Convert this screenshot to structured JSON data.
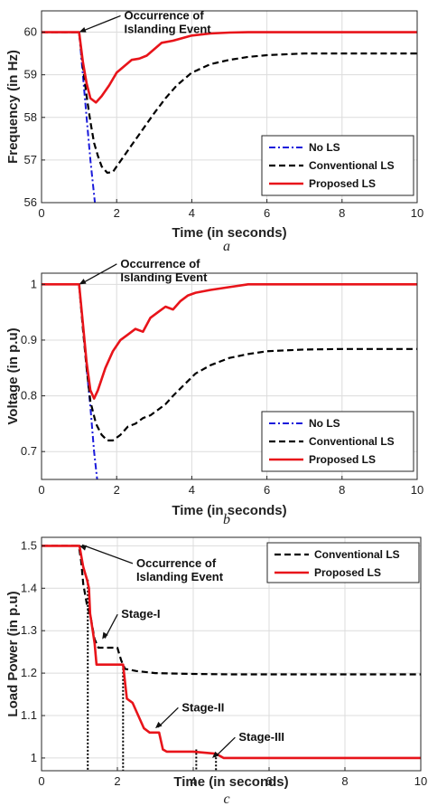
{
  "chart_data": [
    {
      "type": "line",
      "panel": "a",
      "caption": "a",
      "xlabel": "Time (in seconds)",
      "ylabel": "Frequency (in Hz)",
      "xlim": [
        0,
        10
      ],
      "ylim": [
        56,
        60.5
      ],
      "xticks": [
        0,
        2,
        4,
        6,
        8,
        10
      ],
      "yticks": [
        56,
        57,
        58,
        59,
        60
      ],
      "grid": true,
      "legend": "bottom-right",
      "annotations": [
        {
          "text": [
            "Occurrence of",
            "Islanding Event"
          ],
          "target": [
            1.0,
            60.0
          ],
          "text_at": [
            2.2,
            60.3
          ]
        }
      ],
      "series": [
        {
          "name": "No LS",
          "style": "dashdot",
          "color": "#1a1adb",
          "x": [
            0,
            1.0,
            1.1,
            1.2,
            1.3,
            1.42
          ],
          "y": [
            60,
            60,
            59.0,
            58.0,
            57.0,
            56.0
          ]
        },
        {
          "name": "Conventional LS",
          "style": "dashed",
          "color": "#000000",
          "x": [
            0,
            1.0,
            1.1,
            1.2,
            1.3,
            1.4,
            1.5,
            1.6,
            1.75,
            1.9,
            2.0,
            2.2,
            2.4,
            2.6,
            2.8,
            3.0,
            3.3,
            3.6,
            4.0,
            4.5,
            5.0,
            5.5,
            6.0,
            7.0,
            8.0,
            9.0,
            10.0
          ],
          "y": [
            60,
            60,
            59.2,
            58.5,
            57.9,
            57.4,
            57.1,
            56.85,
            56.7,
            56.72,
            56.85,
            57.1,
            57.35,
            57.6,
            57.85,
            58.1,
            58.45,
            58.75,
            59.05,
            59.25,
            59.35,
            59.42,
            59.46,
            59.5,
            59.5,
            59.5,
            59.5
          ]
        },
        {
          "name": "Proposed LS",
          "style": "solid",
          "color": "#e8141a",
          "x": [
            0,
            1.0,
            1.1,
            1.2,
            1.3,
            1.45,
            1.6,
            1.8,
            2.0,
            2.2,
            2.4,
            2.6,
            2.8,
            3.0,
            3.2,
            3.5,
            4.0,
            4.5,
            5.0,
            5.5,
            6.0,
            10.0
          ],
          "y": [
            60,
            60,
            59.3,
            58.8,
            58.45,
            58.35,
            58.5,
            58.75,
            59.05,
            59.2,
            59.35,
            59.38,
            59.45,
            59.6,
            59.75,
            59.8,
            59.92,
            59.97,
            59.99,
            60,
            60,
            60
          ]
        }
      ]
    },
    {
      "type": "line",
      "panel": "b",
      "caption": "b",
      "xlabel": "Time (in seconds)",
      "ylabel": "Voltage (in p.u)",
      "xlim": [
        0,
        10
      ],
      "ylim": [
        0.65,
        1.02
      ],
      "xticks": [
        0,
        2,
        4,
        6,
        8,
        10
      ],
      "yticks": [
        0.7,
        0.8,
        0.9,
        1
      ],
      "grid": true,
      "legend": "bottom-right",
      "annotations": [
        {
          "text": [
            "Occurrence of",
            "Islanding Event"
          ],
          "target": [
            1.0,
            1.0
          ],
          "text_at": [
            2.1,
            1.03
          ]
        }
      ],
      "series": [
        {
          "name": "No LS",
          "style": "dashdot",
          "color": "#1a1adb",
          "x": [
            0,
            1.0,
            1.1,
            1.2,
            1.3,
            1.4,
            1.48
          ],
          "y": [
            1,
            1,
            0.93,
            0.85,
            0.78,
            0.7,
            0.65
          ]
        },
        {
          "name": "Conventional LS",
          "style": "dashed",
          "color": "#000000",
          "x": [
            0,
            1.0,
            1.1,
            1.2,
            1.3,
            1.45,
            1.6,
            1.75,
            1.9,
            2.1,
            2.3,
            2.5,
            2.7,
            2.9,
            3.1,
            3.3,
            3.5,
            3.8,
            4.1,
            4.5,
            5.0,
            5.5,
            6.0,
            7.0,
            8.0,
            9.0,
            10.0
          ],
          "y": [
            1,
            1,
            0.92,
            0.85,
            0.79,
            0.75,
            0.73,
            0.72,
            0.72,
            0.73,
            0.745,
            0.75,
            0.76,
            0.765,
            0.775,
            0.785,
            0.8,
            0.82,
            0.84,
            0.855,
            0.868,
            0.875,
            0.88,
            0.883,
            0.884,
            0.884,
            0.884
          ]
        },
        {
          "name": "Proposed LS",
          "style": "solid",
          "color": "#e8141a",
          "x": [
            0,
            1.0,
            1.1,
            1.2,
            1.3,
            1.4,
            1.5,
            1.7,
            1.9,
            2.1,
            2.3,
            2.5,
            2.7,
            2.9,
            3.1,
            3.3,
            3.5,
            3.7,
            3.9,
            4.1,
            4.5,
            5.0,
            5.5,
            6.0,
            10.0
          ],
          "y": [
            1,
            1,
            0.93,
            0.86,
            0.81,
            0.795,
            0.81,
            0.85,
            0.88,
            0.9,
            0.91,
            0.92,
            0.915,
            0.94,
            0.95,
            0.96,
            0.955,
            0.97,
            0.98,
            0.985,
            0.99,
            0.995,
            1.0,
            1.0,
            1.0
          ]
        }
      ]
    },
    {
      "type": "line",
      "panel": "c",
      "caption": "c",
      "xlabel": "Time (in seconds)",
      "ylabel": "Load Power (in p.u)",
      "xlim": [
        0,
        10
      ],
      "ylim": [
        0.97,
        1.52
      ],
      "xticks": [
        0,
        2,
        4,
        6,
        8,
        10
      ],
      "xticklabels": [
        "0",
        "2",
        "4",
        "6",
        "8",
        "10"
      ],
      "yticks": [
        1,
        1.1,
        1.2,
        1.3,
        1.4,
        1.5
      ],
      "grid": true,
      "legend": "top-right",
      "annotations": [
        {
          "text": [
            "Occurrence of",
            "Islanding Event"
          ],
          "target": [
            1.0,
            1.5
          ],
          "text_at": [
            2.5,
            1.45
          ]
        },
        {
          "text": [
            "Stage-I"
          ],
          "target": [
            1.6,
            1.28
          ],
          "text_at": [
            2.1,
            1.33
          ]
        },
        {
          "text": [
            "Stage-II"
          ],
          "target": [
            3.0,
            1.07
          ],
          "text_at": [
            3.7,
            1.11
          ]
        },
        {
          "text": [
            "Stage-III"
          ],
          "target": [
            4.5,
            1.0
          ],
          "text_at": [
            5.2,
            1.04
          ]
        }
      ],
      "stage_markers": [
        {
          "x": 1.22,
          "y_top": 1.42
        },
        {
          "x": 2.15,
          "y_top": 1.22
        },
        {
          "x": 4.08,
          "y_top": 1.02
        },
        {
          "x": 4.6,
          "y_top": 1.01
        }
      ],
      "series": [
        {
          "name": "Conventional LS",
          "style": "dashed",
          "color": "#000000",
          "x": [
            0,
            0.95,
            1.0,
            1.05,
            1.1,
            1.2,
            1.3,
            1.4,
            1.5,
            2.0,
            2.1,
            2.2,
            2.5,
            3.0,
            4.0,
            5.0,
            10.0
          ],
          "y": [
            1.5,
            1.5,
            1.49,
            1.46,
            1.41,
            1.36,
            1.33,
            1.28,
            1.26,
            1.26,
            1.23,
            1.21,
            1.205,
            1.2,
            1.198,
            1.197,
            1.197
          ]
        },
        {
          "name": "Proposed LS",
          "style": "solid",
          "color": "#e8141a",
          "x": [
            0,
            1.0,
            1.1,
            1.2,
            1.25,
            1.28,
            1.35,
            1.4,
            1.45,
            1.55,
            1.7,
            1.8,
            2.0,
            2.15,
            2.25,
            2.4,
            2.55,
            2.7,
            2.85,
            3.1,
            3.2,
            3.3,
            3.6,
            4.0,
            4.6,
            4.8,
            10.0
          ],
          "y": [
            1.5,
            1.5,
            1.45,
            1.42,
            1.4,
            1.34,
            1.3,
            1.27,
            1.22,
            1.22,
            1.22,
            1.22,
            1.22,
            1.22,
            1.14,
            1.13,
            1.1,
            1.07,
            1.06,
            1.06,
            1.02,
            1.015,
            1.015,
            1.015,
            1.01,
            1.0,
            1.0
          ]
        }
      ]
    }
  ]
}
